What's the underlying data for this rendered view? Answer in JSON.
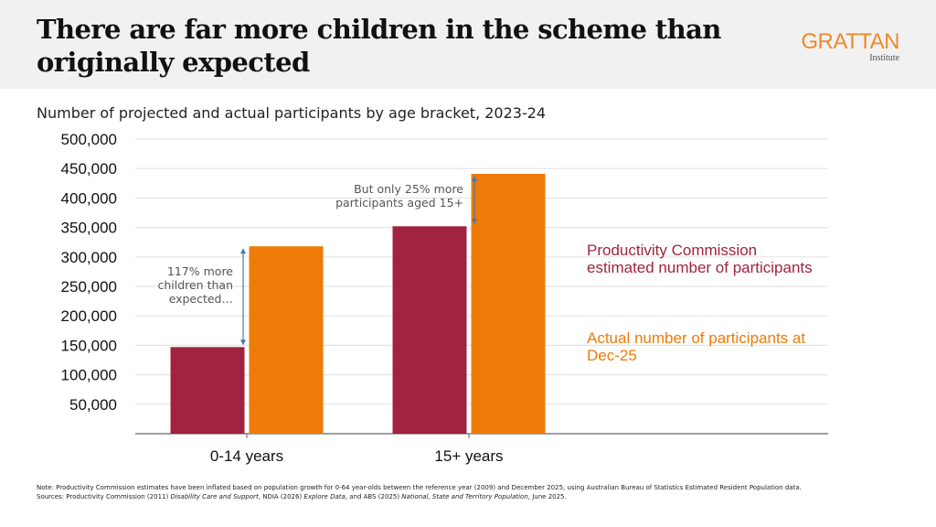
{
  "header": {
    "title": "There are far more children in the scheme than originally expected",
    "logo_main": "GRATTAN",
    "logo_sub": "Institute"
  },
  "colors": {
    "pc_estimate": "#a0243f",
    "actual": "#ee7b08",
    "arrow": "#4a78a8",
    "grid": "#e4e4e4",
    "logo": "#f0892a"
  },
  "chart_data": {
    "type": "bar",
    "title": "Number of projected and actual participants by age bracket, 2023-24",
    "xlabel": "",
    "ylabel": "",
    "categories": [
      "0-14 years",
      "15+ years"
    ],
    "series": [
      {
        "name": "Productivity Commission estimated number of participants",
        "values": [
          147000,
          352000
        ]
      },
      {
        "name": "Actual number of participants at Dec-25",
        "values": [
          318000,
          441000
        ]
      }
    ],
    "ylim": [
      0,
      500000
    ],
    "yticks": [
      50000,
      100000,
      150000,
      200000,
      250000,
      300000,
      350000,
      400000,
      450000,
      500000
    ],
    "ytick_labels": [
      "50,000",
      "100,000",
      "150,000",
      "200,000",
      "250,000",
      "300,000",
      "350,000",
      "400,000",
      "450,000",
      "500,000"
    ],
    "grid": true,
    "legend_placement": "right",
    "annotations": [
      {
        "text": "117% more children than expected…",
        "category": "0-14 years"
      },
      {
        "text": "But only 25% more participants aged 15+",
        "category": "15+ years"
      }
    ]
  },
  "legend": {
    "pc": "Productivity Commission estimated number of participants",
    "actual": "Actual number of participants at Dec-25"
  },
  "annotations": {
    "a_line1": "117% more",
    "a_line2": "children than",
    "a_line3": "expected…",
    "b_line1": "But only 25% more",
    "b_line2": "participants aged 15+"
  },
  "footnote": {
    "note": "Note: Productivity Commission estimates have been inflated based on population growth for 0-64 year-olds between the reference year (2009) and December 2025, using Australian Bureau of Statistics Estimated Resident Population data.",
    "sources_prefix": "Sources: Productivity Commission (2011) ",
    "src1_title": "Disability Care and Support",
    "src_mid1": ", NDIA (2026) ",
    "src2_title": "Explore Data",
    "src_mid2": ", and ABS (2025) ",
    "src3_title": "National, State and Territory Population",
    "src_end": ", June 2025."
  }
}
